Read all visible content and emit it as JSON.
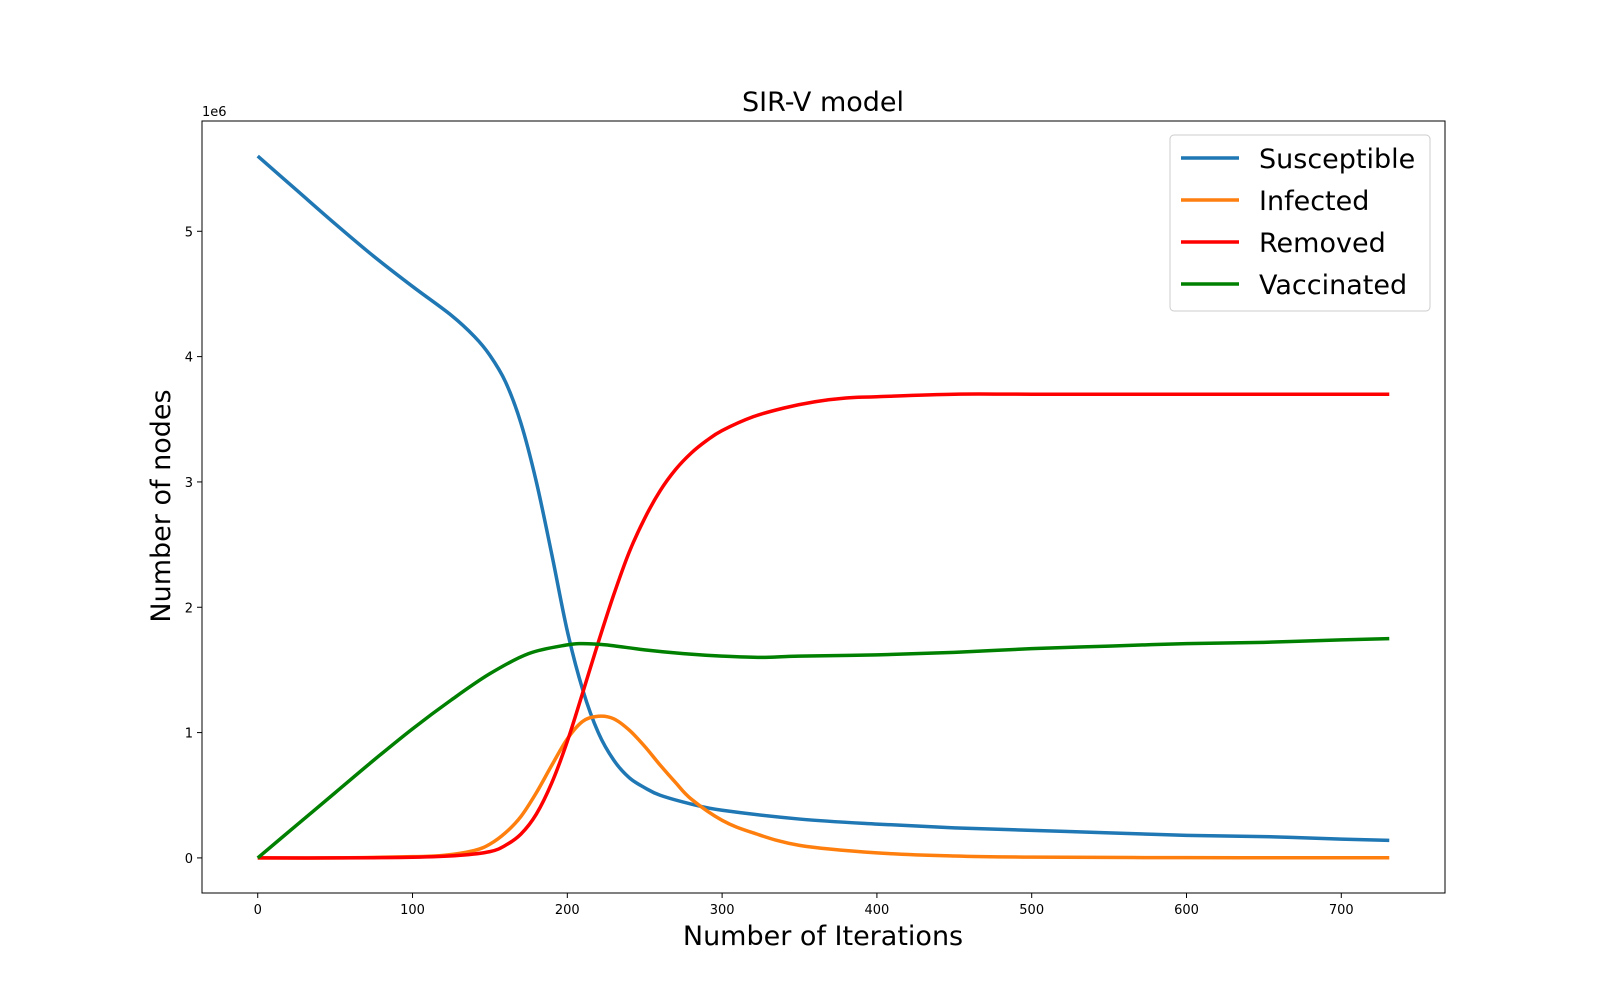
{
  "chart_data": {
    "type": "line",
    "title": "SIR-V model",
    "xlabel": "Number of Iterations",
    "ylabel": "Number of nodes",
    "y_offset_label": "1e6",
    "xlim": [
      -36,
      767
    ],
    "ylim": [
      -0.28,
      5.88
    ],
    "xticks": [
      0,
      100,
      200,
      300,
      400,
      500,
      600,
      700
    ],
    "yticks": [
      0,
      1,
      2,
      3,
      4,
      5
    ],
    "grid": false,
    "legend_position": "upper right",
    "series": [
      {
        "name": "Susceptible",
        "color": "#1f77b4",
        "x": [
          0,
          25,
          50,
          75,
          100,
          125,
          140,
          150,
          160,
          170,
          180,
          190,
          200,
          210,
          220,
          230,
          240,
          250,
          260,
          280,
          300,
          350,
          400,
          450,
          500,
          550,
          600,
          650,
          700,
          731
        ],
        "y": [
          5.6,
          5.33,
          5.06,
          4.8,
          4.56,
          4.33,
          4.16,
          4.01,
          3.8,
          3.47,
          3.0,
          2.42,
          1.81,
          1.34,
          1.0,
          0.78,
          0.64,
          0.56,
          0.5,
          0.43,
          0.38,
          0.31,
          0.27,
          0.24,
          0.22,
          0.2,
          0.18,
          0.17,
          0.15,
          0.14
        ]
      },
      {
        "name": "Infected",
        "color": "#ff7f0e",
        "x": [
          0,
          50,
          100,
          120,
          140,
          150,
          160,
          170,
          180,
          190,
          200,
          210,
          220,
          230,
          240,
          250,
          260,
          270,
          280,
          300,
          320,
          350,
          400,
          450,
          500,
          600,
          700,
          731
        ],
        "y": [
          0,
          0,
          0.01,
          0.02,
          0.06,
          0.11,
          0.2,
          0.33,
          0.52,
          0.74,
          0.95,
          1.09,
          1.13,
          1.11,
          1.02,
          0.89,
          0.74,
          0.6,
          0.47,
          0.3,
          0.2,
          0.1,
          0.04,
          0.015,
          0.006,
          0.002,
          0.001,
          0.001
        ]
      },
      {
        "name": "Removed",
        "color": "#ff0000",
        "x": [
          0,
          50,
          100,
          130,
          150,
          160,
          170,
          180,
          190,
          200,
          210,
          220,
          230,
          240,
          250,
          260,
          270,
          280,
          290,
          300,
          320,
          340,
          360,
          380,
          400,
          450,
          500,
          600,
          700,
          731
        ],
        "y": [
          0,
          0,
          0.005,
          0.02,
          0.05,
          0.1,
          0.19,
          0.35,
          0.6,
          0.93,
          1.32,
          1.72,
          2.1,
          2.44,
          2.71,
          2.93,
          3.1,
          3.23,
          3.33,
          3.41,
          3.52,
          3.59,
          3.64,
          3.67,
          3.68,
          3.7,
          3.7,
          3.7,
          3.7,
          3.7
        ]
      },
      {
        "name": "Vaccinated",
        "color": "#008000",
        "x": [
          0,
          25,
          50,
          75,
          100,
          125,
          150,
          175,
          200,
          210,
          225,
          250,
          275,
          300,
          325,
          350,
          400,
          450,
          500,
          550,
          600,
          650,
          700,
          731
        ],
        "y": [
          0,
          0.26,
          0.52,
          0.78,
          1.03,
          1.26,
          1.47,
          1.63,
          1.7,
          1.71,
          1.7,
          1.66,
          1.63,
          1.61,
          1.6,
          1.61,
          1.62,
          1.64,
          1.67,
          1.69,
          1.71,
          1.72,
          1.74,
          1.75
        ]
      }
    ]
  }
}
